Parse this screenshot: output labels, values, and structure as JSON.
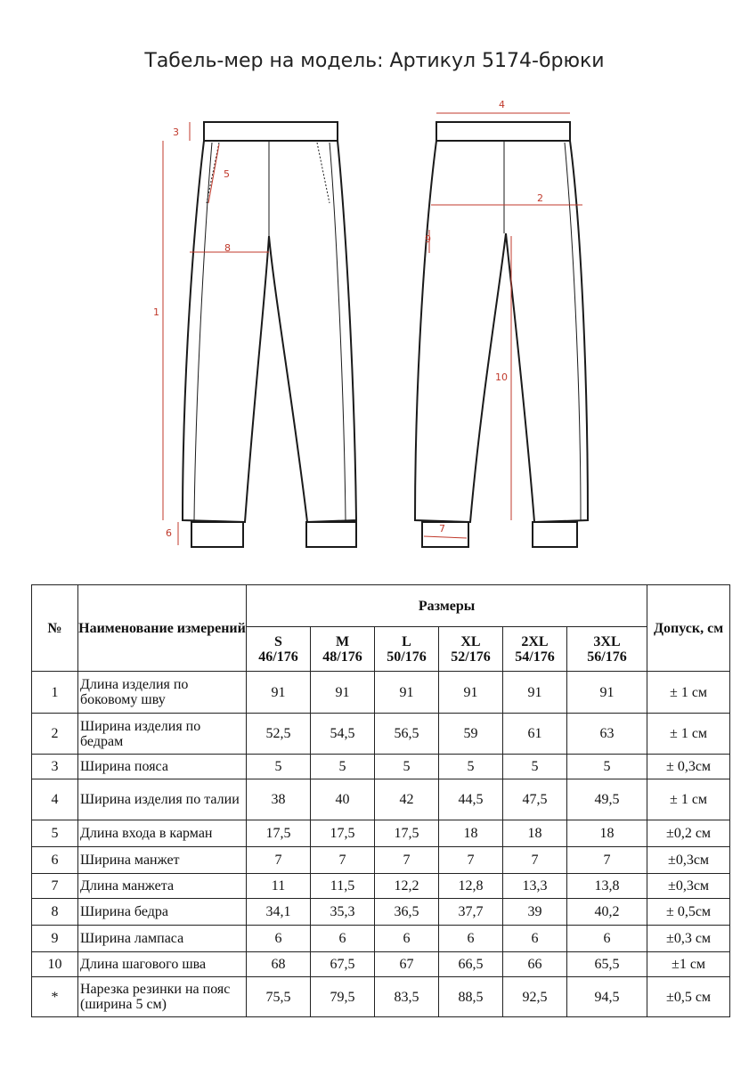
{
  "title": "Табель-мер на модель: Артикул 5174-брюки",
  "drawing": {
    "line_color": "#1a1a1a",
    "dim_color": "#c0392b",
    "labels": [
      "1",
      "2",
      "3",
      "4",
      "5",
      "6",
      "7",
      "8",
      "9",
      "10"
    ]
  },
  "table": {
    "headers": {
      "num": "№",
      "name": "Наименование измерений",
      "sizes": "Размеры",
      "tolerance": "Допуск, см",
      "size_cols": [
        {
          "size": "S",
          "height": "46/176"
        },
        {
          "size": "M",
          "height": "48/176"
        },
        {
          "size": "L",
          "height": "50/176"
        },
        {
          "size": "XL",
          "height": "52/176"
        },
        {
          "size": "2XL",
          "height": "54/176"
        },
        {
          "size": "3XL",
          "height": "56/176"
        }
      ]
    },
    "rows": [
      {
        "num": "1",
        "name": "Длина изделия по боковому шву",
        "values": [
          "91",
          "91",
          "91",
          "91",
          "91",
          "91"
        ],
        "tol": "± 1 см"
      },
      {
        "num": "2",
        "name": "Ширина изделия по бедрам",
        "values": [
          "52,5",
          "54,5",
          "56,5",
          "59",
          "61",
          "63"
        ],
        "tol": "± 1 см"
      },
      {
        "num": "3",
        "name": "Ширина пояса",
        "values": [
          "5",
          "5",
          "5",
          "5",
          "5",
          "5"
        ],
        "tol": "± 0,3см"
      },
      {
        "num": "4",
        "name": "Ширина изделия по талии",
        "values": [
          "38",
          "40",
          "42",
          "44,5",
          "47,5",
          "49,5"
        ],
        "tol": "± 1 см"
      },
      {
        "num": "5",
        "name": "Длина входа в карман",
        "values": [
          "17,5",
          "17,5",
          "17,5",
          "18",
          "18",
          "18"
        ],
        "tol": "±0,2 см"
      },
      {
        "num": "6",
        "name": "Ширина манжет",
        "values": [
          "7",
          "7",
          "7",
          "7",
          "7",
          "7"
        ],
        "tol": "±0,3см"
      },
      {
        "num": "7",
        "name": "Длина манжета",
        "values": [
          "11",
          "11,5",
          "12,2",
          "12,8",
          "13,3",
          "13,8"
        ],
        "tol": "±0,3см"
      },
      {
        "num": "8",
        "name": "Ширина бедра",
        "values": [
          "34,1",
          "35,3",
          "36,5",
          "37,7",
          "39",
          "40,2"
        ],
        "tol": "± 0,5см"
      },
      {
        "num": "9",
        "name": "Ширина лампаса",
        "values": [
          "6",
          "6",
          "6",
          "6",
          "6",
          "6"
        ],
        "tol": "±0,3 см"
      },
      {
        "num": "10",
        "name": "Длина шагового шва",
        "values": [
          "68",
          "67,5",
          "67",
          "66,5",
          "66",
          "65,5"
        ],
        "tol": "±1 см"
      },
      {
        "num": "*",
        "name": "Нарезка резинки на пояс (ширина 5 см)",
        "values": [
          "75,5",
          "79,5",
          "83,5",
          "88,5",
          "92,5",
          "94,5"
        ],
        "tol": "±0,5 см"
      }
    ]
  }
}
